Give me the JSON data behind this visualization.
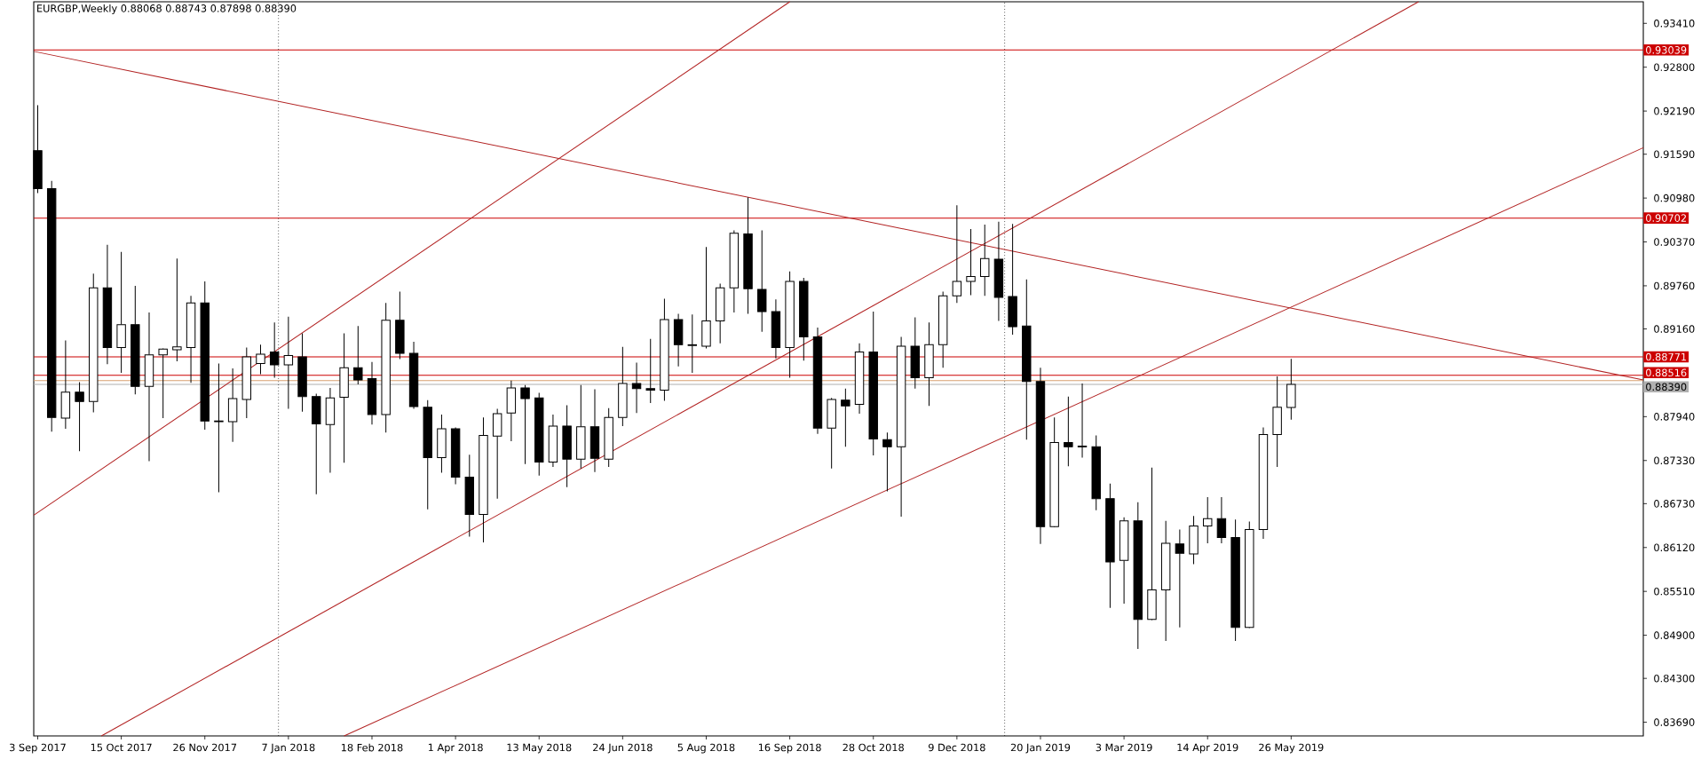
{
  "chart_data": {
    "type": "candlestick",
    "title": "EURGBP,Weekly 0.88068 0.88743 0.87898 0.88390",
    "x": [
      "2017-09-03",
      "2017-09-10",
      "2017-09-17",
      "2017-09-24",
      "2017-10-01",
      "2017-10-08",
      "2017-10-15",
      "2017-10-22",
      "2017-10-29",
      "2017-11-05",
      "2017-11-12",
      "2017-11-19",
      "2017-11-26",
      "2017-12-03",
      "2017-12-10",
      "2017-12-17",
      "2017-12-24",
      "2017-12-31",
      "2018-01-07",
      "2018-01-14",
      "2018-01-21",
      "2018-01-28",
      "2018-02-04",
      "2018-02-11",
      "2018-02-18",
      "2018-02-25",
      "2018-03-04",
      "2018-03-11",
      "2018-03-18",
      "2018-03-25",
      "2018-04-01",
      "2018-04-08",
      "2018-04-15",
      "2018-04-22",
      "2018-04-29",
      "2018-05-06",
      "2018-05-13",
      "2018-05-20",
      "2018-05-27",
      "2018-06-03",
      "2018-06-10",
      "2018-06-17",
      "2018-06-24",
      "2018-07-01",
      "2018-07-08",
      "2018-07-15",
      "2018-07-22",
      "2018-07-29",
      "2018-08-05",
      "2018-08-12",
      "2018-08-19",
      "2018-08-26",
      "2018-09-02",
      "2018-09-09",
      "2018-09-16",
      "2018-09-23",
      "2018-09-30",
      "2018-10-07",
      "2018-10-14",
      "2018-10-21",
      "2018-10-28",
      "2018-11-04",
      "2018-11-11",
      "2018-11-18",
      "2018-11-25",
      "2018-12-02",
      "2018-12-09",
      "2018-12-16",
      "2018-12-23",
      "2018-12-30",
      "2019-01-06",
      "2019-01-13",
      "2019-01-20",
      "2019-01-27",
      "2019-02-03",
      "2019-02-10",
      "2019-02-17",
      "2019-02-24",
      "2019-03-03",
      "2019-03-10",
      "2019-03-17",
      "2019-03-24",
      "2019-03-31",
      "2019-04-07",
      "2019-04-14",
      "2019-04-21",
      "2019-04-28",
      "2019-05-05",
      "2019-05-12",
      "2019-05-19",
      "2019-05-26"
    ],
    "ohlc": [
      [
        0.9164,
        0.9227,
        0.9105,
        0.9111
      ],
      [
        0.9111,
        0.9122,
        0.8773,
        0.8793
      ],
      [
        0.8792,
        0.89,
        0.8777,
        0.8828
      ],
      [
        0.8828,
        0.8842,
        0.8746,
        0.8815
      ],
      [
        0.8815,
        0.8993,
        0.88,
        0.8973
      ],
      [
        0.8973,
        0.9033,
        0.8867,
        0.889
      ],
      [
        0.889,
        0.9023,
        0.8855,
        0.8922
      ],
      [
        0.8922,
        0.8976,
        0.8825,
        0.8836
      ],
      [
        0.8836,
        0.8939,
        0.8732,
        0.888
      ],
      [
        0.888,
        0.8889,
        0.8792,
        0.8888
      ],
      [
        0.8887,
        0.9014,
        0.8871,
        0.8891
      ],
      [
        0.889,
        0.8962,
        0.8841,
        0.8952
      ],
      [
        0.8952,
        0.8982,
        0.8776,
        0.8788
      ],
      [
        0.8788,
        0.8868,
        0.8689,
        0.8787
      ],
      [
        0.8787,
        0.8861,
        0.8759,
        0.8819
      ],
      [
        0.8818,
        0.889,
        0.8792,
        0.8877
      ],
      [
        0.8868,
        0.8894,
        0.8853,
        0.8881
      ],
      [
        0.8884,
        0.8925,
        0.8848,
        0.8866
      ],
      [
        0.8866,
        0.8933,
        0.8805,
        0.8879
      ],
      [
        0.8877,
        0.891,
        0.8801,
        0.8822
      ],
      [
        0.8822,
        0.8826,
        0.8686,
        0.8784
      ],
      [
        0.8783,
        0.8834,
        0.8716,
        0.882
      ],
      [
        0.8821,
        0.891,
        0.873,
        0.8862
      ],
      [
        0.8862,
        0.892,
        0.8839,
        0.8845
      ],
      [
        0.8847,
        0.887,
        0.8783,
        0.8797
      ],
      [
        0.8797,
        0.8952,
        0.8772,
        0.8928
      ],
      [
        0.8928,
        0.8968,
        0.8874,
        0.8882
      ],
      [
        0.8882,
        0.8898,
        0.8805,
        0.8808
      ],
      [
        0.8807,
        0.8817,
        0.8665,
        0.8737
      ],
      [
        0.8737,
        0.8797,
        0.8716,
        0.8777
      ],
      [
        0.8777,
        0.8779,
        0.87,
        0.871
      ],
      [
        0.871,
        0.8741,
        0.8627,
        0.8658
      ],
      [
        0.8658,
        0.8793,
        0.8619,
        0.8768
      ],
      [
        0.8767,
        0.8805,
        0.868,
        0.8798
      ],
      [
        0.8799,
        0.8844,
        0.876,
        0.8834
      ],
      [
        0.8834,
        0.8838,
        0.8728,
        0.8819
      ],
      [
        0.882,
        0.8827,
        0.8712,
        0.8731
      ],
      [
        0.8731,
        0.8797,
        0.8724,
        0.8781
      ],
      [
        0.8781,
        0.881,
        0.8696,
        0.8735
      ],
      [
        0.8735,
        0.8838,
        0.8722,
        0.878
      ],
      [
        0.878,
        0.8832,
        0.8717,
        0.8736
      ],
      [
        0.8735,
        0.8806,
        0.8724,
        0.8793
      ],
      [
        0.8793,
        0.8891,
        0.8781,
        0.884
      ],
      [
        0.884,
        0.8869,
        0.8799,
        0.8833
      ],
      [
        0.8833,
        0.8902,
        0.8813,
        0.8831
      ],
      [
        0.8831,
        0.8958,
        0.8816,
        0.8929
      ],
      [
        0.8929,
        0.8937,
        0.8864,
        0.8894
      ],
      [
        0.8894,
        0.8936,
        0.8855,
        0.8893
      ],
      [
        0.8892,
        0.903,
        0.8889,
        0.8927
      ],
      [
        0.8927,
        0.8979,
        0.8896,
        0.8973
      ],
      [
        0.8973,
        0.9053,
        0.8939,
        0.9049
      ],
      [
        0.9048,
        0.9099,
        0.8937,
        0.8972
      ],
      [
        0.8971,
        0.9053,
        0.8912,
        0.894
      ],
      [
        0.894,
        0.8957,
        0.8875,
        0.889
      ],
      [
        0.889,
        0.8996,
        0.8848,
        0.8982
      ],
      [
        0.8982,
        0.8987,
        0.8872,
        0.8905
      ],
      [
        0.8905,
        0.8918,
        0.877,
        0.8778
      ],
      [
        0.8778,
        0.882,
        0.8722,
        0.8818
      ],
      [
        0.8817,
        0.8833,
        0.8752,
        0.8809
      ],
      [
        0.8811,
        0.8896,
        0.8798,
        0.8884
      ],
      [
        0.8884,
        0.894,
        0.874,
        0.8763
      ],
      [
        0.8762,
        0.8772,
        0.869,
        0.8752
      ],
      [
        0.8752,
        0.8905,
        0.8655,
        0.8892
      ],
      [
        0.8892,
        0.8932,
        0.8833,
        0.8848
      ],
      [
        0.8848,
        0.8925,
        0.8809,
        0.8894
      ],
      [
        0.8894,
        0.8968,
        0.8862,
        0.8962
      ],
      [
        0.8962,
        0.9088,
        0.8952,
        0.8982
      ],
      [
        0.8982,
        0.9055,
        0.8963,
        0.8989
      ],
      [
        0.8989,
        0.9061,
        0.8962,
        0.9014
      ],
      [
        0.9013,
        0.9065,
        0.8927,
        0.896
      ],
      [
        0.8961,
        0.9062,
        0.8908,
        0.8919
      ],
      [
        0.892,
        0.8985,
        0.8762,
        0.8843
      ],
      [
        0.8843,
        0.8862,
        0.8617,
        0.8641
      ],
      [
        0.8641,
        0.8793,
        0.864,
        0.8758
      ],
      [
        0.8758,
        0.8822,
        0.8725,
        0.8752
      ],
      [
        0.8753,
        0.884,
        0.8737,
        0.8752
      ],
      [
        0.8752,
        0.8768,
        0.8664,
        0.868
      ],
      [
        0.868,
        0.8701,
        0.8528,
        0.8592
      ],
      [
        0.8594,
        0.8654,
        0.8534,
        0.8649
      ],
      [
        0.8649,
        0.8675,
        0.8471,
        0.8512
      ],
      [
        0.8512,
        0.8723,
        0.8511,
        0.8553
      ],
      [
        0.8553,
        0.8649,
        0.8482,
        0.8618
      ],
      [
        0.8617,
        0.8637,
        0.8501,
        0.8604
      ],
      [
        0.8603,
        0.8656,
        0.8589,
        0.8642
      ],
      [
        0.8642,
        0.8682,
        0.8618,
        0.8652
      ],
      [
        0.8652,
        0.8682,
        0.8618,
        0.8626
      ],
      [
        0.8626,
        0.8651,
        0.8482,
        0.8501
      ],
      [
        0.8501,
        0.8648,
        0.85,
        0.8637
      ],
      [
        0.8637,
        0.8779,
        0.8624,
        0.8769
      ],
      [
        0.8769,
        0.885,
        0.8724,
        0.8807
      ],
      [
        0.88068,
        0.88743,
        0.87898,
        0.8839
      ]
    ],
    "series": [
      {
        "type": "line",
        "color": "#b22222",
        "x": [
          "2017-09-01",
          "2019-11-19"
        ],
        "values": [
          0.9302,
          0.8845
        ]
      },
      {
        "type": "line",
        "color": "#b22222",
        "x": [
          "2017-09-01",
          "2018-09-16"
        ],
        "values": [
          0.8657,
          0.9371
        ]
      },
      {
        "type": "line",
        "color": "#b22222",
        "x": [
          "2017-10-05",
          "2019-07-29"
        ],
        "values": [
          0.835,
          0.9371
        ]
      },
      {
        "type": "line",
        "color": "#b22222",
        "x": [
          "2018-02-04",
          "2019-11-19"
        ],
        "values": [
          0.835,
          0.9168
        ]
      }
    ],
    "xlim": [
      "2017-09-01",
      "2019-11-19"
    ],
    "ylim": [
      0.835,
      0.9371
    ],
    "xticks": [
      {
        "value": "2017-09-03",
        "label": "3 Sep 2017"
      },
      {
        "value": "2017-10-15",
        "label": "15 Oct 2017"
      },
      {
        "value": "2017-11-26",
        "label": "26 Nov 2017"
      },
      {
        "value": "2018-01-07",
        "label": "7 Jan 2018"
      },
      {
        "value": "2018-02-18",
        "label": "18 Feb 2018"
      },
      {
        "value": "2018-04-01",
        "label": "1 Apr 2018"
      },
      {
        "value": "2018-05-13",
        "label": "13 May 2018"
      },
      {
        "value": "2018-06-24",
        "label": "24 Jun 2018"
      },
      {
        "value": "2018-08-05",
        "label": "5 Aug 2018"
      },
      {
        "value": "2018-09-16",
        "label": "16 Sep 2018"
      },
      {
        "value": "2018-10-28",
        "label": "28 Oct 2018"
      },
      {
        "value": "2018-12-09",
        "label": "9 Dec 2018"
      },
      {
        "value": "2019-01-20",
        "label": "20 Jan 2019"
      },
      {
        "value": "2019-03-03",
        "label": "3 Mar 2019"
      },
      {
        "value": "2019-04-14",
        "label": "14 Apr 2019"
      },
      {
        "value": "2019-05-26",
        "label": "26 May 2019"
      }
    ],
    "yticks": [
      {
        "value": 0.9341,
        "label": "0.93410"
      },
      {
        "value": 0.928,
        "label": "0.92800"
      },
      {
        "value": 0.9219,
        "label": "0.92190"
      },
      {
        "value": 0.9159,
        "label": "0.91590"
      },
      {
        "value": 0.9098,
        "label": "0.90980"
      },
      {
        "value": 0.9037,
        "label": "0.90370"
      },
      {
        "value": 0.8976,
        "label": "0.89760"
      },
      {
        "value": 0.8916,
        "label": "0.89160"
      },
      {
        "value": 0.8794,
        "label": "0.87940"
      },
      {
        "value": 0.8733,
        "label": "0.87330"
      },
      {
        "value": 0.8673,
        "label": "0.86730"
      },
      {
        "value": 0.8612,
        "label": "0.86120"
      },
      {
        "value": 0.8551,
        "label": "0.85510"
      },
      {
        "value": 0.849,
        "label": "0.84900"
      },
      {
        "value": 0.843,
        "label": "0.84300"
      },
      {
        "value": 0.8369,
        "label": "0.83690"
      }
    ],
    "ref_lines": [
      {
        "axis": "y",
        "value": 0.93039,
        "label": "0.93039",
        "color": "#cc0000"
      },
      {
        "axis": "y",
        "value": 0.90702,
        "label": "0.90702",
        "color": "#cc0000"
      },
      {
        "axis": "y",
        "value": 0.88771,
        "label": "0.88771",
        "color": "#cc0000"
      },
      {
        "axis": "y",
        "value": 0.88516,
        "label": "0.88516",
        "color": "#cc0000"
      },
      {
        "axis": "y",
        "value": 0.8844,
        "color": "#d8a070"
      },
      {
        "axis": "y",
        "value": 0.8839,
        "label": "0.88390",
        "color": "#b0b0b0"
      },
      {
        "axis": "x",
        "value": "2018-01-02",
        "color": "#000000",
        "line_style": "dotted"
      },
      {
        "axis": "x",
        "value": "2019-01-02",
        "color": "#000000",
        "line_style": "dotted"
      }
    ]
  }
}
